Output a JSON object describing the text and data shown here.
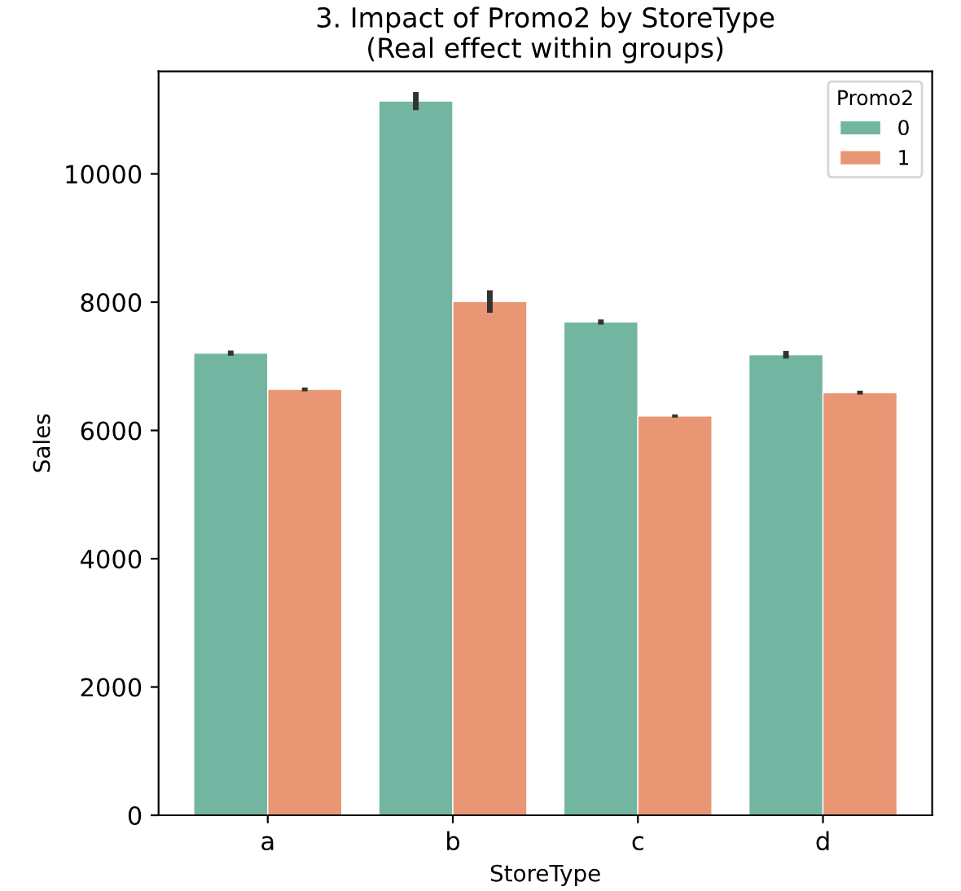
{
  "chart_data": {
    "type": "bar",
    "title": "3. Impact of Promo2 by StoreType\n(Real effect within groups)",
    "xlabel": "StoreType",
    "ylabel": "Sales",
    "categories": [
      "a",
      "b",
      "c",
      "d"
    ],
    "series": [
      {
        "name": "0",
        "color": "#72b6a1",
        "values": [
          7205,
          11135,
          7690,
          7180
        ],
        "errors": [
          40,
          140,
          40,
          60
        ]
      },
      {
        "name": "1",
        "color": "#e99675",
        "values": [
          6640,
          8010,
          6225,
          6590
        ],
        "errors": [
          30,
          175,
          25,
          30
        ]
      }
    ],
    "legend_title": "Promo2",
    "legend": "top right",
    "ylim": [
      0,
      11600
    ],
    "yticks": [
      0,
      2000,
      4000,
      6000,
      8000,
      10000
    ],
    "grid": false
  }
}
